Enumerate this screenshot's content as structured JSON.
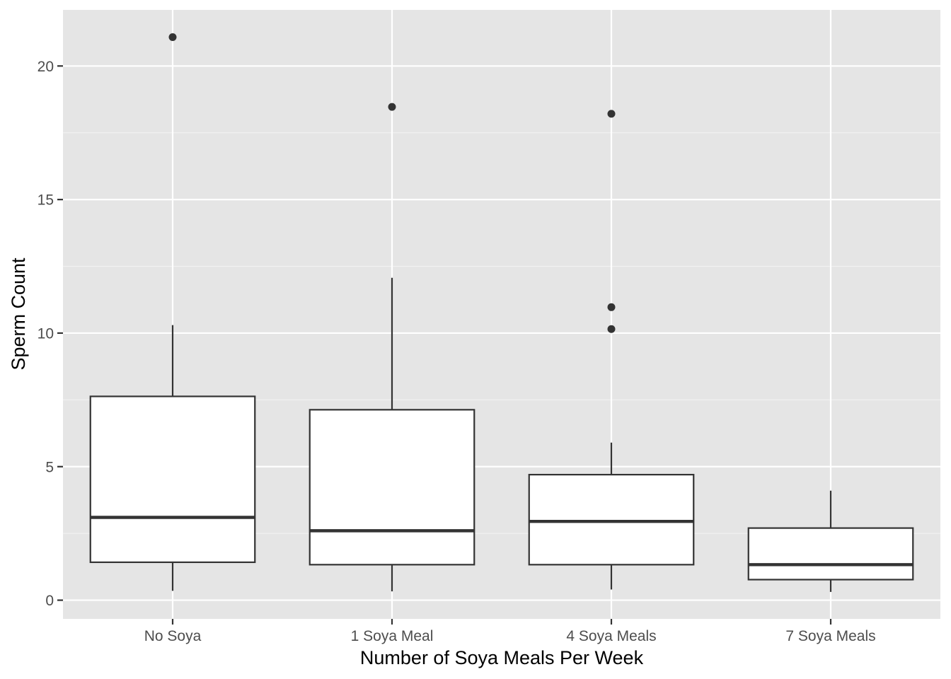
{
  "chart_data": {
    "type": "boxplot",
    "title": "",
    "xlabel": "Number of Soya Meals Per Week",
    "ylabel": "Sperm Count",
    "categories": [
      "No Soya",
      "1 Soya Meal",
      "4 Soya Meals",
      "7 Soya Meals"
    ],
    "ylim": [
      -0.7,
      22.1
    ],
    "yticks": [
      0,
      5,
      10,
      15,
      20
    ],
    "grid": true,
    "legend": "none",
    "boxes": [
      {
        "category": "No Soya",
        "whisker_low": 0.35,
        "q1": 1.42,
        "median": 3.1,
        "q3": 7.63,
        "whisker_high": 10.3,
        "outliers": [
          21.08
        ]
      },
      {
        "category": "1 Soya Meal",
        "whisker_low": 0.33,
        "q1": 1.33,
        "median": 2.6,
        "q3": 7.13,
        "whisker_high": 12.07,
        "outliers": [
          18.47
        ]
      },
      {
        "category": "4 Soya Meals",
        "whisker_low": 0.4,
        "q1": 1.33,
        "median": 2.95,
        "q3": 4.7,
        "whisker_high": 5.9,
        "outliers": [
          18.21,
          10.97,
          10.15
        ]
      },
      {
        "category": "7 Soya Meals",
        "whisker_low": 0.31,
        "q1": 0.77,
        "median": 1.33,
        "q3": 2.7,
        "whisker_high": 4.1,
        "outliers": []
      }
    ],
    "colors": {
      "panel_background": "#e5e5e5",
      "grid_major": "#ffffff",
      "grid_minor": "#f2f2f2",
      "box_fill": "#ffffff",
      "box_line": "#333333",
      "outlier": "#333333",
      "tick_text": "#4d4d4d",
      "title_text": "#000000"
    }
  }
}
